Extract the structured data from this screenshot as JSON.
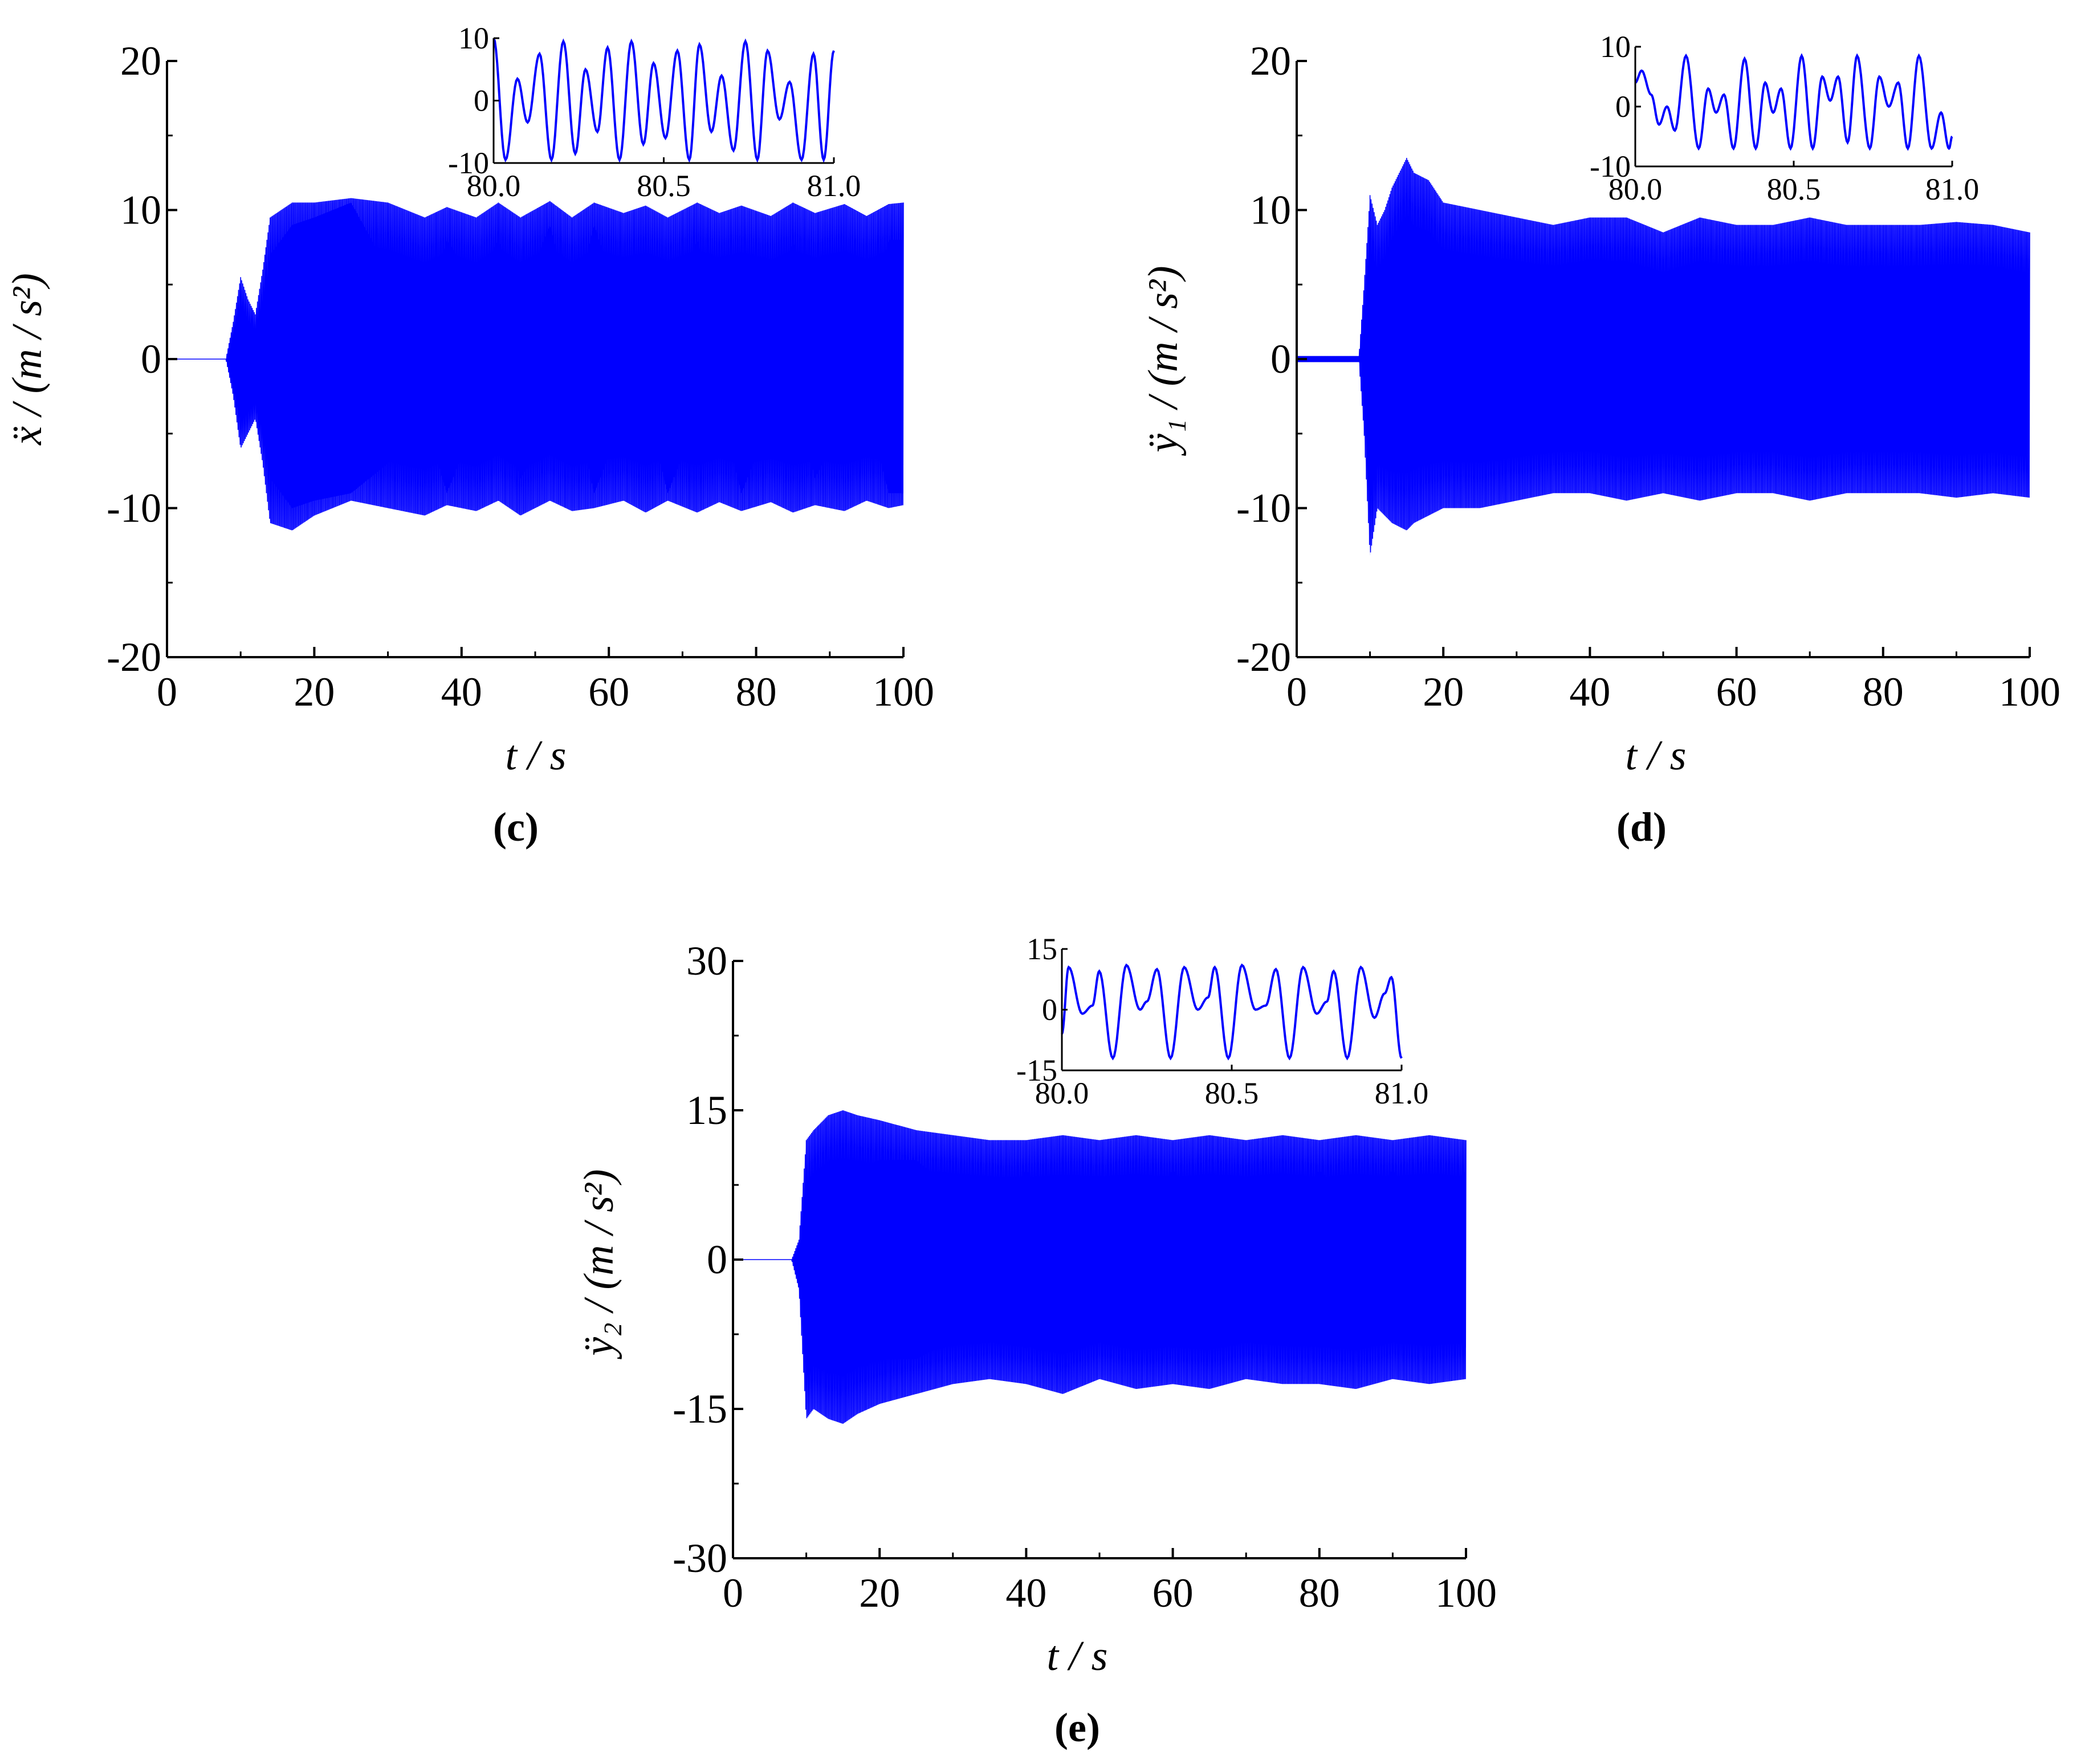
{
  "figure": {
    "background": "#ffffff",
    "signal_color": "#0000ff"
  },
  "chart_data": [
    {
      "type": "line",
      "panel": "c",
      "panel_label": "(c)",
      "panel_letter": "c",
      "title": "",
      "xlabel": "t / s",
      "ylabel": "ẍ / (m / s²)",
      "ylabel_symbol": "ẍ",
      "ylabel_subscript": "",
      "xlim": [
        0,
        100
      ],
      "ylim": [
        -20,
        20
      ],
      "xticks": [
        0,
        20,
        40,
        60,
        80,
        100
      ],
      "yticks": [
        -20,
        -10,
        0,
        10,
        20
      ],
      "xtick_labels": [
        "0",
        "20",
        "40",
        "60",
        "80",
        "100"
      ],
      "ytick_labels": [
        "-20",
        "-10",
        "0",
        "10",
        "20"
      ],
      "grid": false,
      "series": [
        {
          "color": "#0000ff",
          "envelope": {
            "t": [
              0,
              8,
              9,
              10,
              11,
              12,
              13,
              14,
              17,
              20,
              25,
              30,
              35,
              38,
              42,
              45,
              48,
              52,
              55,
              58,
              62,
              65,
              68,
              72,
              75,
              78,
              82,
              85,
              88,
              92,
              95,
              98,
              100
            ],
            "upper": [
              0,
              0,
              2.5,
              5.5,
              4,
              3,
              6,
              9.5,
              10.5,
              10.5,
              10.8,
              10.5,
              9.5,
              10.2,
              9.5,
              10.5,
              9.5,
              10.6,
              9.5,
              10.5,
              9.8,
              10.3,
              9.5,
              10.5,
              9.8,
              10.3,
              9.6,
              10.5,
              9.8,
              10.4,
              9.6,
              10.4,
              10.5
            ],
            "inner_upper": [
              0,
              0,
              0,
              0,
              0,
              0,
              2,
              7,
              9,
              9.5,
              10.5,
              6,
              3,
              8,
              5,
              8,
              4,
              9,
              3,
              9,
              3,
              7,
              3,
              8,
              3,
              7,
              2,
              8,
              3,
              6,
              2,
              8,
              8
            ],
            "lower": [
              0,
              0,
              -2.5,
              -6,
              -5,
              -4,
              -7,
              -11,
              -11.5,
              -10.5,
              -9.5,
              -10,
              -10.5,
              -9.8,
              -10.2,
              -9.5,
              -10.5,
              -9.5,
              -10.2,
              -10,
              -9.5,
              -10.3,
              -9.5,
              -10.3,
              -9.6,
              -10.2,
              -9.6,
              -10.3,
              -9.8,
              -10.2,
              -9.5,
              -10,
              -9.8
            ],
            "inner_lower": [
              0,
              0,
              0,
              0,
              0,
              0,
              -2,
              -8,
              -10,
              -9.5,
              -9,
              -7,
              -4,
              -9,
              -4,
              -3,
              -8,
              -5,
              -2,
              -9,
              -4,
              -3,
              -9,
              -4,
              -3,
              -9,
              -4,
              -2,
              -8,
              -4,
              -3,
              -9,
              -9
            ]
          }
        }
      ],
      "inset": {
        "xlim": [
          80.0,
          81.0
        ],
        "ylim": [
          -10,
          10
        ],
        "xticks": [
          80.0,
          80.5,
          81.0
        ],
        "yticks": [
          -10,
          0,
          10
        ],
        "xtick_labels": [
          "80.0",
          "80.5",
          "81.0"
        ],
        "ytick_labels": [
          "-10",
          "0",
          "10"
        ],
        "peaks": [
          [
            80.0,
            10
          ],
          [
            80.035,
            -9.5
          ],
          [
            80.07,
            3.5
          ],
          [
            80.1,
            -3.5
          ],
          [
            80.135,
            7.5
          ],
          [
            80.17,
            -9.5
          ],
          [
            80.205,
            9.5
          ],
          [
            80.24,
            -8.5
          ],
          [
            80.27,
            5
          ],
          [
            80.305,
            -5
          ],
          [
            80.335,
            8.5
          ],
          [
            80.37,
            -9.5
          ],
          [
            80.405,
            9.5
          ],
          [
            80.44,
            -7
          ],
          [
            80.47,
            6
          ],
          [
            80.505,
            -6
          ],
          [
            80.54,
            8
          ],
          [
            80.575,
            -9.5
          ],
          [
            80.605,
            9
          ],
          [
            80.64,
            -5
          ],
          [
            80.67,
            4
          ],
          [
            80.705,
            -8
          ],
          [
            80.74,
            9.5
          ],
          [
            80.775,
            -9.5
          ],
          [
            80.805,
            8
          ],
          [
            80.84,
            -3
          ],
          [
            80.87,
            3
          ],
          [
            80.905,
            -9.5
          ],
          [
            80.94,
            7.5
          ],
          [
            80.97,
            -9.5
          ],
          [
            81.0,
            8
          ]
        ]
      }
    },
    {
      "type": "line",
      "panel": "d",
      "panel_label": "(d)",
      "panel_letter": "d",
      "title": "",
      "xlabel": "t / s",
      "ylabel": "ÿ₁ / (m / s²)",
      "ylabel_symbol": "ÿ",
      "ylabel_subscript": "1",
      "xlim": [
        0,
        100
      ],
      "ylim": [
        -20,
        20
      ],
      "xticks": [
        0,
        20,
        40,
        60,
        80,
        100
      ],
      "yticks": [
        -20,
        -10,
        0,
        10,
        20
      ],
      "xtick_labels": [
        "0",
        "20",
        "40",
        "60",
        "80",
        "100"
      ],
      "ytick_labels": [
        "-20",
        "-10",
        "0",
        "10",
        "20"
      ],
      "grid": false,
      "series": [
        {
          "color": "#0000ff",
          "envelope": {
            "t": [
              0,
              8.5,
              9.2,
              10,
              11,
              12,
              13,
              15,
              16,
              18,
              20,
              25,
              30,
              35,
              40,
              45,
              50,
              55,
              60,
              65,
              70,
              75,
              80,
              85,
              90,
              95,
              100
            ],
            "upper": [
              0.2,
              0.2,
              5,
              11,
              9,
              10,
              11.5,
              13.5,
              12.5,
              12,
              10.5,
              10,
              9.5,
              9,
              9.5,
              9.5,
              8.5,
              9.5,
              9,
              9,
              9.5,
              9,
              9,
              9,
              9.2,
              9,
              8.5
            ],
            "inner_upper": [
              0.2,
              0.2,
              1,
              3,
              4,
              5,
              6,
              7,
              7,
              6,
              6,
              6,
              5,
              4,
              5,
              5,
              3,
              5,
              4,
              5,
              5,
              4,
              5,
              4,
              5,
              4,
              4
            ],
            "lower": [
              -0.2,
              -0.2,
              -5,
              -13.2,
              -10,
              -10.5,
              -11,
              -11.5,
              -11,
              -10.5,
              -10,
              -10,
              -9.5,
              -9,
              -9,
              -9.5,
              -9,
              -9.5,
              -9,
              -9,
              -9.5,
              -9,
              -9,
              -9,
              -9.3,
              -9,
              -9.3
            ],
            "inner_lower": [
              -0.2,
              -0.2,
              -1,
              -4,
              -5,
              -6,
              -6,
              -6,
              -6,
              -6,
              -6,
              -7,
              -6,
              -5,
              -5,
              -6,
              -4,
              -6,
              -5,
              -6,
              -6,
              -5,
              -6,
              -5,
              -6,
              -5,
              -6
            ]
          }
        }
      ],
      "inset": {
        "xlim": [
          80.0,
          81.0
        ],
        "ylim": [
          -10,
          10
        ],
        "xticks": [
          80.0,
          80.5,
          81.0
        ],
        "yticks": [
          -10,
          0,
          10
        ],
        "xtick_labels": [
          "80.0",
          "80.5",
          "81.0"
        ],
        "ytick_labels": [
          "-10",
          "0",
          "10"
        ],
        "peaks": [
          [
            80.0,
            4
          ],
          [
            80.02,
            6
          ],
          [
            80.05,
            2
          ],
          [
            80.075,
            -3
          ],
          [
            80.1,
            0
          ],
          [
            80.125,
            -4
          ],
          [
            80.16,
            8.5
          ],
          [
            80.2,
            -7
          ],
          [
            80.23,
            3
          ],
          [
            80.255,
            -1
          ],
          [
            80.28,
            2
          ],
          [
            80.31,
            -7
          ],
          [
            80.345,
            8
          ],
          [
            80.38,
            -7
          ],
          [
            80.41,
            4
          ],
          [
            80.435,
            -1
          ],
          [
            80.46,
            3
          ],
          [
            80.49,
            -7
          ],
          [
            80.525,
            8.5
          ],
          [
            80.56,
            -7
          ],
          [
            80.59,
            5
          ],
          [
            80.615,
            1
          ],
          [
            80.64,
            5
          ],
          [
            80.67,
            -6
          ],
          [
            80.7,
            8.5
          ],
          [
            80.74,
            -7
          ],
          [
            80.77,
            5
          ],
          [
            80.8,
            0
          ],
          [
            80.83,
            4
          ],
          [
            80.86,
            -7
          ],
          [
            80.895,
            8.5
          ],
          [
            80.935,
            -7
          ],
          [
            80.965,
            -1
          ],
          [
            80.99,
            -7
          ],
          [
            81.0,
            -5
          ]
        ]
      }
    },
    {
      "type": "line",
      "panel": "e",
      "panel_label": "(e)",
      "panel_letter": "e",
      "title": "",
      "xlabel": "t / s",
      "ylabel": "ÿ₂ / (m / s²)",
      "ylabel_symbol": "ÿ",
      "ylabel_subscript": "2",
      "xlim": [
        0,
        100
      ],
      "ylim": [
        -30,
        30
      ],
      "xticks": [
        0,
        20,
        40,
        60,
        80,
        100
      ],
      "yticks": [
        -30,
        -15,
        0,
        15,
        30
      ],
      "xtick_labels": [
        "0",
        "20",
        "40",
        "60",
        "80",
        "100"
      ],
      "ytick_labels": [
        "-30",
        "-15",
        "0",
        "15",
        "30"
      ],
      "grid": false,
      "series": [
        {
          "color": "#0000ff",
          "envelope": {
            "t": [
              0,
              8,
              9,
              10,
              11,
              13,
              15,
              17,
              20,
              25,
              30,
              35,
              40,
              45,
              50,
              55,
              60,
              65,
              70,
              75,
              80,
              85,
              90,
              95,
              100
            ],
            "upper": [
              0,
              0,
              2,
              12,
              13,
              14.5,
              15,
              14.5,
              14,
              13,
              12.5,
              12,
              12,
              12.5,
              12,
              12.5,
              12,
              12.5,
              12,
              12.5,
              12,
              12.5,
              12,
              12.5,
              12
            ],
            "inner_upper": [
              0,
              0,
              0,
              2,
              4,
              7,
              9,
              9,
              10,
              10,
              7,
              4,
              9,
              4,
              8,
              4,
              9,
              5,
              8,
              4,
              9,
              5,
              9,
              4,
              9
            ],
            "lower": [
              0,
              0,
              -3,
              -16,
              -15,
              -16,
              -16.5,
              -15.5,
              -14.5,
              -13.5,
              -12.5,
              -12,
              -12.5,
              -13.5,
              -12,
              -13,
              -12.5,
              -13,
              -12,
              -12.5,
              -12.5,
              -13,
              -12,
              -12.5,
              -12
            ],
            "inner_lower": [
              0,
              0,
              0,
              -3,
              -6,
              -8,
              -10,
              -10,
              -10,
              -10,
              -8,
              -4,
              -9,
              -3,
              -8,
              -4,
              -9,
              -4,
              -8,
              -4,
              -9,
              -4,
              -8,
              -3,
              -9
            ]
          }
        }
      ],
      "inset": {
        "xlim": [
          80.0,
          81.0
        ],
        "ylim": [
          -15,
          15
        ],
        "xticks": [
          80.0,
          80.5,
          81.0
        ],
        "yticks": [
          -15,
          0,
          15
        ],
        "xtick_labels": [
          "80.0",
          "80.5",
          "81.0"
        ],
        "ytick_labels": [
          "-15",
          "0",
          "15"
        ],
        "peaks": [
          [
            80.0,
            -6
          ],
          [
            80.02,
            10.5
          ],
          [
            80.06,
            -1
          ],
          [
            80.09,
            1
          ],
          [
            80.11,
            9.5
          ],
          [
            80.15,
            -12
          ],
          [
            80.19,
            11
          ],
          [
            80.23,
            0
          ],
          [
            80.25,
            2
          ],
          [
            80.28,
            10
          ],
          [
            80.32,
            -12
          ],
          [
            80.36,
            10.5
          ],
          [
            80.4,
            0
          ],
          [
            80.43,
            3
          ],
          [
            80.45,
            10.5
          ],
          [
            80.49,
            -12
          ],
          [
            80.53,
            11
          ],
          [
            80.57,
            0
          ],
          [
            80.6,
            1
          ],
          [
            80.63,
            10
          ],
          [
            80.67,
            -12
          ],
          [
            80.71,
            10.5
          ],
          [
            80.75,
            -1
          ],
          [
            80.78,
            2
          ],
          [
            80.8,
            9.5
          ],
          [
            80.84,
            -12
          ],
          [
            80.88,
            10.5
          ],
          [
            80.92,
            -2
          ],
          [
            80.95,
            4
          ],
          [
            80.97,
            8
          ],
          [
            81.0,
            -12
          ]
        ]
      }
    }
  ]
}
